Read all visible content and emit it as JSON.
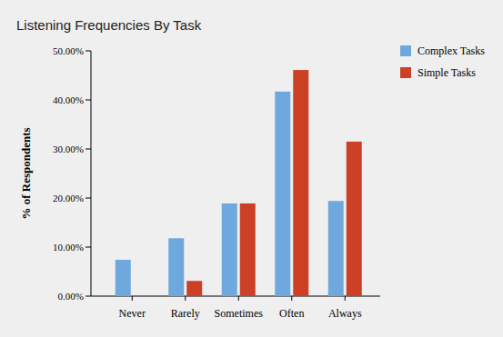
{
  "chart_data": {
    "type": "bar",
    "title": "Listening Frequencies By Task",
    "y_label": "% of Respondents",
    "categories": [
      "Never",
      "Rarely",
      "Sometimes",
      "Often",
      "Always"
    ],
    "series": [
      {
        "name": "Complex Tasks",
        "color": "#6fa8dc",
        "values": [
          7.4,
          11.8,
          18.9,
          41.7,
          19.4
        ]
      },
      {
        "name": "Simple Tasks",
        "color": "#cc4125",
        "values": [
          0,
          3.1,
          18.9,
          46.1,
          31.5
        ]
      }
    ],
    "ylim": [
      0,
      50
    ],
    "yticks": [
      {
        "value": 0,
        "label": "0.00%"
      },
      {
        "value": 10,
        "label": "10.00%"
      },
      {
        "value": 20,
        "label": "20.00%"
      },
      {
        "value": 30,
        "label": "30.00%"
      },
      {
        "value": 40,
        "label": "40.00%"
      },
      {
        "value": 50,
        "label": "50.00%"
      }
    ],
    "grid": false,
    "legend": "top-right"
  }
}
